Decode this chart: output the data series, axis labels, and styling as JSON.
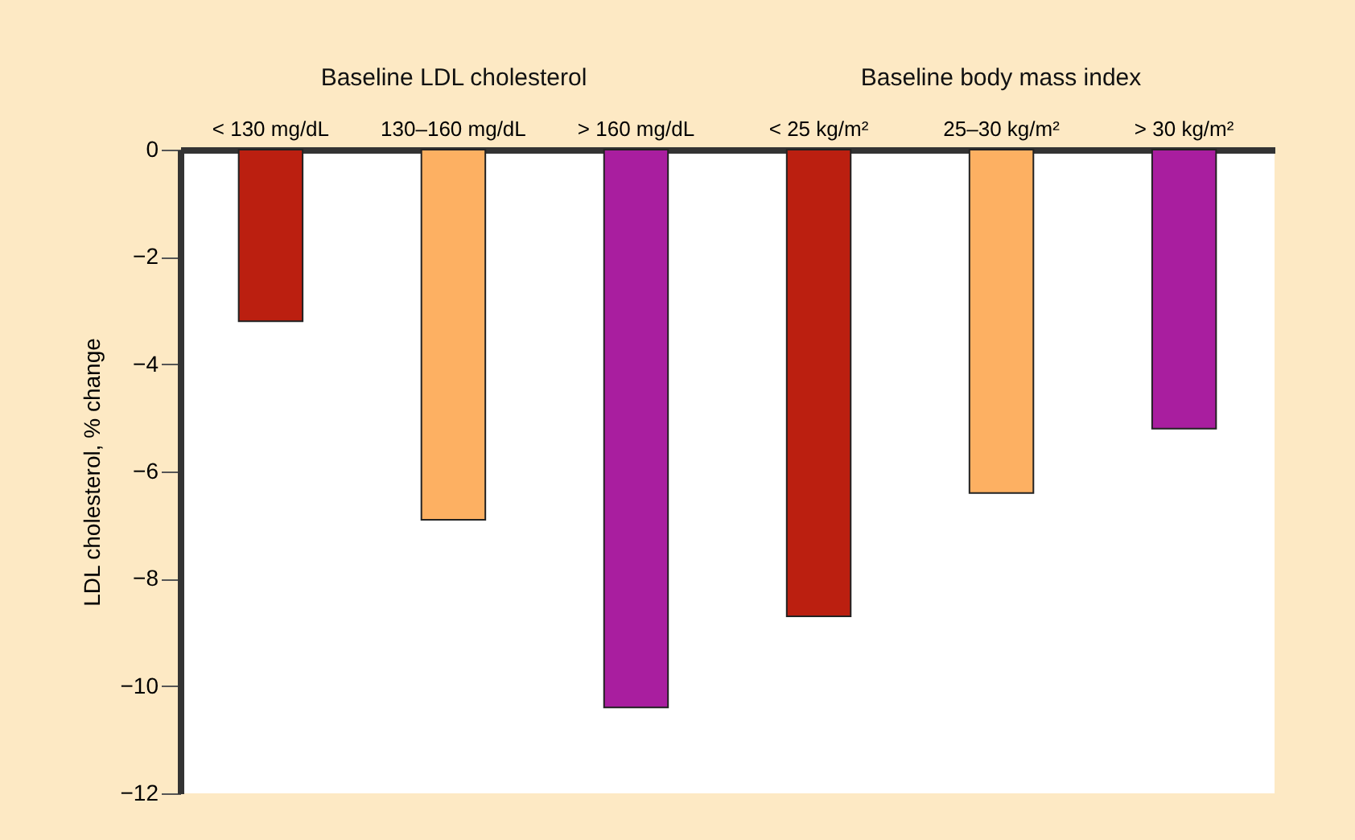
{
  "chart_data": {
    "type": "bar",
    "ylabel": "LDL cholesterol, % change",
    "categories": [
      "< 130 mg/dL",
      "130–160 mg/dL",
      "> 160 mg/dL",
      "< 25 kg/m²",
      "25–30 kg/m²",
      "> 30 kg/m²"
    ],
    "values": [
      -3.2,
      -6.9,
      -10.4,
      -8.7,
      -6.4,
      -5.2
    ],
    "colors": [
      "#bb1f10",
      "#fdb062",
      "#a91e9f",
      "#bb1f10",
      "#fdb062",
      "#a91e9f"
    ],
    "ylim": [
      -12,
      0
    ],
    "yticks": [
      0,
      -2,
      -4,
      -6,
      -8,
      -10,
      -12
    ],
    "annotations": [
      "Baseline LDL cholesterol",
      "Baseline body mass index"
    ],
    "grid": false
  }
}
